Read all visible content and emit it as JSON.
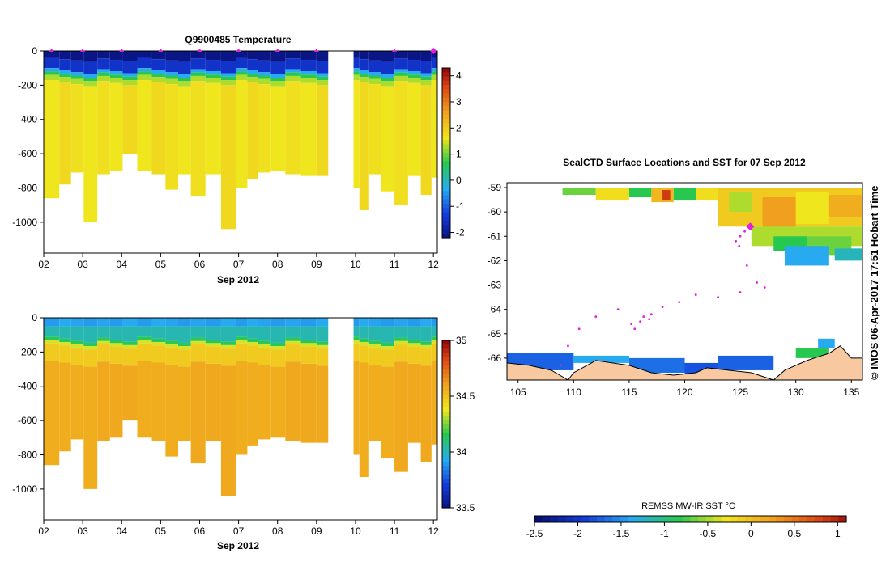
{
  "colors": {
    "deep": "#0a1a8c",
    "blue": "#1e64e6",
    "cyan": "#30c0f0",
    "green": "#2bbf3a",
    "yellow": "#f0e020",
    "orange": "#f0a020",
    "red": "#b01010",
    "land": "#f8c8a0",
    "track": "#e020e0"
  },
  "chart_data": [
    {
      "type": "heatmap",
      "title": "Q9900485  Temperature",
      "xlabel": "Sep 2012",
      "ylabel": "",
      "x_ticks": [
        "02",
        "03",
        "04",
        "05",
        "06",
        "07",
        "08",
        "09",
        "10",
        "11",
        "12"
      ],
      "y_ticks": [
        "0",
        "-200",
        "-400",
        "-600",
        "-800",
        "-1000"
      ],
      "ylim": [
        -1180,
        0
      ],
      "xlim": [
        2,
        12.1
      ],
      "colorbar": {
        "ticks": [
          "4",
          "3",
          "2",
          "1",
          "0",
          "-1",
          "-2"
        ],
        "range": [
          -2.2,
          4.3
        ]
      },
      "profile_markers_day": [
        2.2,
        3,
        4,
        5,
        6,
        7,
        8,
        9,
        11,
        12
      ],
      "profiles": [
        {
          "day": 2.25,
          "depth": 860
        },
        {
          "day": 2.55,
          "depth": 780
        },
        {
          "day": 2.85,
          "depth": 710
        },
        {
          "day": 3.2,
          "depth": 1000
        },
        {
          "day": 3.55,
          "depth": 720
        },
        {
          "day": 3.85,
          "depth": 700
        },
        {
          "day": 4.2,
          "depth": 600
        },
        {
          "day": 4.6,
          "depth": 700
        },
        {
          "day": 4.95,
          "depth": 720
        },
        {
          "day": 5.3,
          "depth": 810
        },
        {
          "day": 5.6,
          "depth": 720
        },
        {
          "day": 5.95,
          "depth": 850
        },
        {
          "day": 6.35,
          "depth": 720
        },
        {
          "day": 6.75,
          "depth": 1040
        },
        {
          "day": 7.1,
          "depth": 800
        },
        {
          "day": 7.35,
          "depth": 750
        },
        {
          "day": 7.65,
          "depth": 710
        },
        {
          "day": 8.0,
          "depth": 700
        },
        {
          "day": 8.4,
          "depth": 720
        },
        {
          "day": 8.8,
          "depth": 730
        },
        {
          "day": 9.2,
          "depth": 730
        },
        {
          "day": 10.0,
          "depth": 800
        },
        {
          "day": 10.2,
          "depth": 930
        },
        {
          "day": 10.5,
          "depth": 720
        },
        {
          "day": 10.8,
          "depth": 820
        },
        {
          "day": 11.2,
          "depth": 900
        },
        {
          "day": 11.5,
          "depth": 730
        },
        {
          "day": 11.85,
          "depth": 840
        },
        {
          "day": 12.05,
          "depth": 740
        }
      ],
      "gap_days": [
        9.3,
        9.95
      ]
    },
    {
      "type": "heatmap",
      "title": "",
      "xlabel": "Sep 2012",
      "ylabel": "",
      "x_ticks": [
        "02",
        "03",
        "04",
        "05",
        "06",
        "07",
        "08",
        "09",
        "10",
        "11",
        "12"
      ],
      "y_ticks": [
        "0",
        "-200",
        "-400",
        "-600",
        "-800",
        "-1000"
      ],
      "ylim": [
        -1180,
        0
      ],
      "colorbar": {
        "ticks": [
          "35",
          "34.5",
          "34",
          "33.5"
        ],
        "range": [
          33.5,
          35
        ]
      }
    },
    {
      "type": "heatmap",
      "title": "SealCTD Surface Locations and SST for 07 Sep 2012",
      "x_ticks": [
        "105",
        "110",
        "115",
        "120",
        "125",
        "130",
        "135"
      ],
      "y_ticks": [
        "-59",
        "-60",
        "-61",
        "-62",
        "-63",
        "-64",
        "-65",
        "-66"
      ],
      "xlim": [
        104,
        136
      ],
      "ylim": [
        -66.9,
        -58.8
      ],
      "colorbar": {
        "label": "REMSS MW-IR SST °C",
        "ticks": [
          "-2.5",
          "-2",
          "-1.5",
          "-1",
          "-0.5",
          "0",
          "0.5",
          "1"
        ],
        "range": [
          -2.5,
          1.1
        ]
      },
      "track_points": [
        {
          "lon": 125.9,
          "lat": -60.6
        },
        {
          "lon": 125.4,
          "lat": -60.8
        },
        {
          "lon": 125.0,
          "lat": -61.0
        },
        {
          "lon": 124.6,
          "lat": -61.2
        },
        {
          "lon": 124.9,
          "lat": -61.4
        },
        {
          "lon": 125.6,
          "lat": -62.2
        },
        {
          "lon": 126.5,
          "lat": -62.9
        },
        {
          "lon": 127.2,
          "lat": -63.1
        },
        {
          "lon": 125.0,
          "lat": -63.3
        },
        {
          "lon": 123.0,
          "lat": -63.5
        },
        {
          "lon": 121.0,
          "lat": -63.4
        },
        {
          "lon": 119.5,
          "lat": -63.7
        },
        {
          "lon": 118.0,
          "lat": -63.9
        },
        {
          "lon": 117.0,
          "lat": -64.2
        },
        {
          "lon": 116.0,
          "lat": -64.5
        },
        {
          "lon": 115.5,
          "lat": -64.8
        },
        {
          "lon": 114.0,
          "lat": -64.0
        },
        {
          "lon": 112.0,
          "lat": -64.3
        },
        {
          "lon": 110.5,
          "lat": -64.8
        },
        {
          "lon": 109.5,
          "lat": -65.5
        },
        {
          "lon": 108.8,
          "lat": -66.3
        },
        {
          "lon": 116.3,
          "lat": -64.3
        },
        {
          "lon": 116.8,
          "lat": -64.4
        },
        {
          "lon": 115.2,
          "lat": -64.6
        }
      ],
      "current_location": {
        "lon": 125.9,
        "lat": -60.6
      }
    }
  ],
  "side_label": "© IMOS 06-Apr-2017 17:51 Hobart Time"
}
